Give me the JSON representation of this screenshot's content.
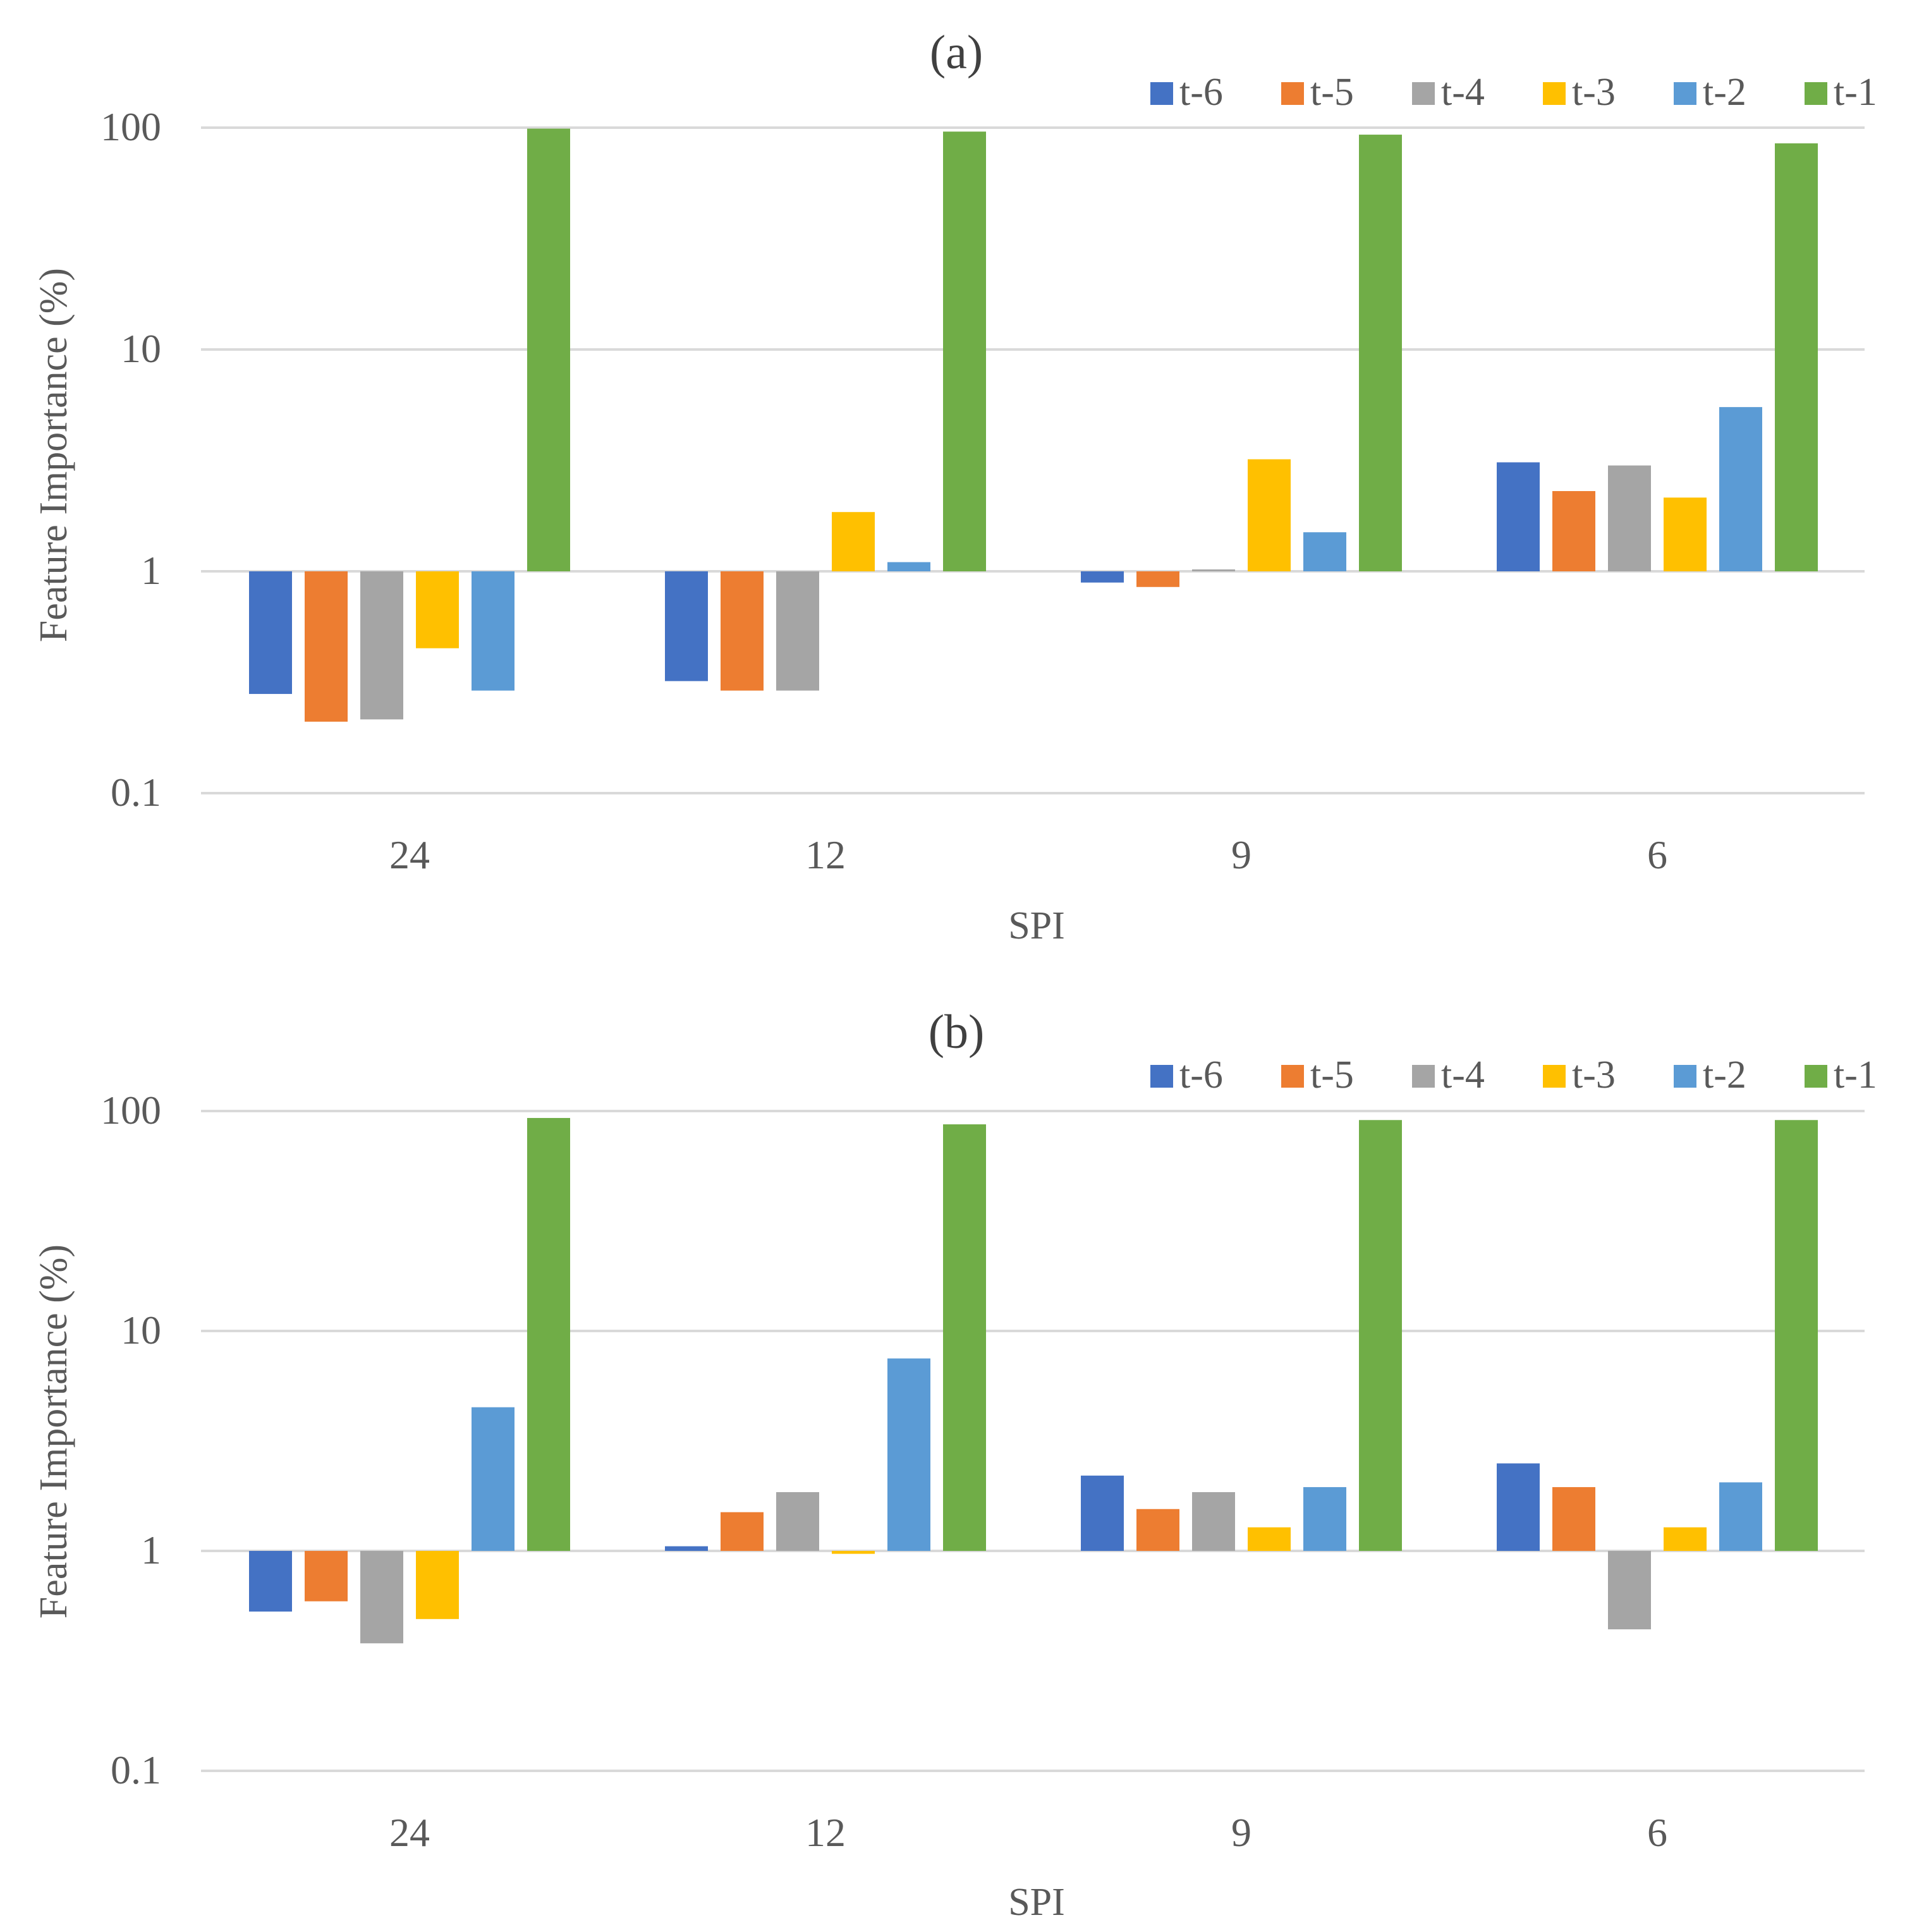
{
  "figure": {
    "colors": {
      "grid": "#d9d9d9",
      "text": "#595959"
    }
  },
  "chart_data": [
    {
      "type": "bar",
      "title": "(a)",
      "xlabel": "SPI",
      "ylabel": "Feature Importance (%)",
      "yscale": "log",
      "ylim": [
        0.1,
        100
      ],
      "baseline": 1,
      "yticks": [
        0.1,
        1,
        10,
        100
      ],
      "ytick_labels": [
        "0.1",
        "1",
        "10",
        "100"
      ],
      "grid": true,
      "legend_position": "top-right",
      "categories": [
        "24",
        "12",
        "9",
        "6"
      ],
      "series": [
        {
          "name": "t-6",
          "color": "#4472c4",
          "values": [
            0.28,
            0.32,
            0.89,
            3.1
          ]
        },
        {
          "name": "t-5",
          "color": "#ed7d31",
          "values": [
            0.21,
            0.29,
            0.85,
            2.3
          ]
        },
        {
          "name": "t-4",
          "color": "#a5a5a5",
          "values": [
            0.215,
            0.29,
            1.02,
            3.0
          ]
        },
        {
          "name": "t-3",
          "color": "#ffc000",
          "values": [
            0.45,
            1.85,
            3.2,
            2.15
          ]
        },
        {
          "name": "t-2",
          "color": "#5b9bd5",
          "values": [
            0.29,
            1.1,
            1.5,
            5.5
          ]
        },
        {
          "name": "t-1",
          "color": "#70ad47",
          "values": [
            99,
            96,
            93,
            85
          ]
        }
      ]
    },
    {
      "type": "bar",
      "title": "(b)",
      "xlabel": "SPI",
      "ylabel": "Feature Importance (%)",
      "yscale": "log",
      "ylim": [
        0.1,
        100
      ],
      "baseline": 1,
      "yticks": [
        0.1,
        1,
        10,
        100
      ],
      "ytick_labels": [
        "0.1",
        "1",
        "10",
        "100"
      ],
      "grid": true,
      "legend_position": "top-right",
      "categories": [
        "24",
        "12",
        "9",
        "6"
      ],
      "series": [
        {
          "name": "t-6",
          "color": "#4472c4",
          "values": [
            0.53,
            1.05,
            2.2,
            2.5
          ]
        },
        {
          "name": "t-5",
          "color": "#ed7d31",
          "values": [
            0.59,
            1.5,
            1.55,
            1.95
          ]
        },
        {
          "name": "t-4",
          "color": "#a5a5a5",
          "values": [
            0.38,
            1.85,
            1.85,
            0.44
          ]
        },
        {
          "name": "t-3",
          "color": "#ffc000",
          "values": [
            0.49,
            0.97,
            1.28,
            1.28
          ]
        },
        {
          "name": "t-2",
          "color": "#5b9bd5",
          "values": [
            4.5,
            7.5,
            1.95,
            2.05
          ]
        },
        {
          "name": "t-1",
          "color": "#70ad47",
          "values": [
            93,
            87,
            91,
            91
          ]
        }
      ]
    }
  ]
}
